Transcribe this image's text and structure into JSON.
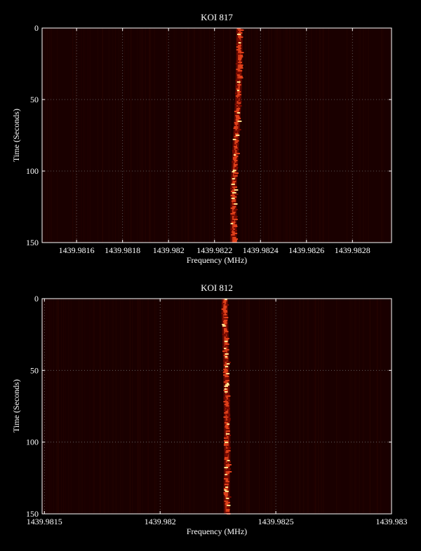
{
  "colors": {
    "background": "#000000",
    "plot_background": "#1a0000",
    "axis": "#ffffff",
    "grid": "#6b6b6b",
    "signal_core": "#ffe08a",
    "signal_mid": "#e0401a",
    "signal_edge": "#7a0a00"
  },
  "chart_data": [
    {
      "type": "heatmap",
      "title": "KOI 817",
      "xlabel": "Frequency (MHz)",
      "ylabel": "Time (Seconds)",
      "xlim": [
        1439.98145,
        1439.98297
      ],
      "ylim": [
        0,
        150
      ],
      "y_inverted": true,
      "grid": true,
      "x_ticks": [
        1439.9816,
        1439.9818,
        1439.982,
        1439.9822,
        1439.9824,
        1439.9826,
        1439.9828
      ],
      "x_tick_labels": [
        "1439.9816",
        "1439.9818",
        "1439.982",
        "1439.9822",
        "1439.9824",
        "1439.9826",
        "1439.9828"
      ],
      "y_ticks": [
        0,
        50,
        100,
        150
      ],
      "y_tick_labels": [
        "0",
        "50",
        "100",
        "150"
      ],
      "signal_track": {
        "time": [
          0,
          10,
          20,
          30,
          40,
          50,
          60,
          70,
          80,
          90,
          100,
          110,
          120,
          130,
          140,
          150
        ],
        "frequency": [
          1439.982308,
          1439.982308,
          1439.982308,
          1439.982306,
          1439.982305,
          1439.982303,
          1439.9823,
          1439.982297,
          1439.982293,
          1439.98229,
          1439.982287,
          1439.982283,
          1439.982283,
          1439.982283,
          1439.982283,
          1439.982283
        ]
      }
    },
    {
      "type": "heatmap",
      "title": "KOI 812",
      "xlabel": "Frequency (MHz)",
      "ylabel": "Time (Seconds)",
      "xlim": [
        1439.98149,
        1439.983
      ],
      "ylim": [
        0,
        150
      ],
      "y_inverted": true,
      "grid": true,
      "x_ticks": [
        1439.9815,
        1439.982,
        1439.9825,
        1439.983
      ],
      "x_tick_labels": [
        "1439.9815",
        "1439.982",
        "1439.9825",
        "1439.983"
      ],
      "y_ticks": [
        0,
        50,
        100,
        150
      ],
      "y_tick_labels": [
        "0",
        "50",
        "100",
        "150"
      ],
      "signal_track": {
        "time": [
          0,
          10,
          20,
          30,
          40,
          50,
          60,
          70,
          80,
          90,
          100,
          110,
          120,
          130,
          140,
          150
        ],
        "frequency": [
          1439.98228,
          1439.982279,
          1439.982281,
          1439.982283,
          1439.982285,
          1439.982286,
          1439.982287,
          1439.982288,
          1439.982289,
          1439.982289,
          1439.98229,
          1439.98229,
          1439.982289,
          1439.982288,
          1439.982288,
          1439.982289
        ]
      }
    }
  ]
}
